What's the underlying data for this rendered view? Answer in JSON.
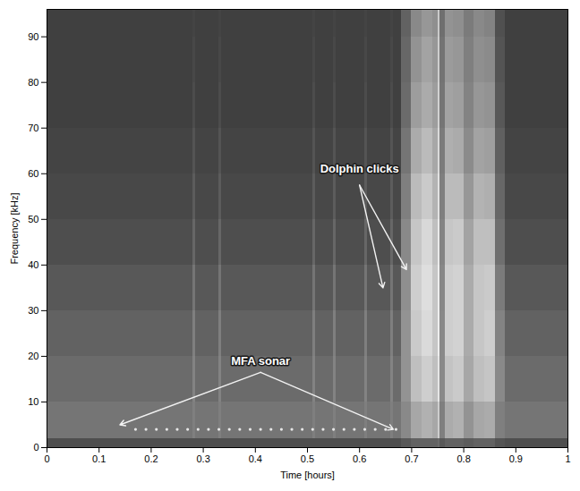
{
  "chart_data": {
    "type": "heatmap",
    "x_label": "Time [hours]",
    "y_label": "Frequency [kHz]",
    "xlim": [
      0,
      1
    ],
    "xticks": [
      0,
      0.1,
      0.2,
      0.3,
      0.4,
      0.5,
      0.6,
      0.7,
      0.8,
      0.9,
      1
    ],
    "ylim": [
      0,
      96
    ],
    "yticks": [
      0,
      10,
      20,
      30,
      40,
      50,
      60,
      70,
      80,
      90
    ],
    "time_edges": [
      0,
      0.28,
      0.285,
      0.33,
      0.335,
      0.51,
      0.515,
      0.55,
      0.555,
      0.61,
      0.615,
      0.66,
      0.665,
      0.68,
      0.7,
      0.72,
      0.74,
      0.75,
      0.755,
      0.765,
      0.78,
      0.8,
      0.82,
      0.84,
      0.86,
      0.88,
      1
    ],
    "frequency_edges": [
      0,
      2,
      10,
      20,
      30,
      40,
      50,
      60,
      70,
      80,
      90,
      96
    ],
    "zlim": [
      0,
      100
    ],
    "levels": [
      [
        15,
        35,
        30,
        25,
        20,
        15,
        12,
        10,
        8,
        8,
        8
      ],
      [
        15,
        40,
        42,
        40,
        35,
        28,
        22,
        18,
        14,
        12,
        10
      ],
      [
        15,
        35,
        30,
        25,
        20,
        15,
        12,
        10,
        8,
        8,
        8
      ],
      [
        15,
        40,
        42,
        40,
        35,
        28,
        22,
        18,
        14,
        12,
        10
      ],
      [
        15,
        35,
        30,
        25,
        20,
        15,
        12,
        10,
        8,
        8,
        8
      ],
      [
        15,
        40,
        42,
        40,
        35,
        28,
        22,
        18,
        14,
        12,
        10
      ],
      [
        15,
        35,
        30,
        25,
        20,
        15,
        12,
        10,
        8,
        8,
        8
      ],
      [
        15,
        40,
        42,
        40,
        35,
        28,
        22,
        18,
        14,
        12,
        10
      ],
      [
        15,
        35,
        30,
        25,
        20,
        15,
        12,
        10,
        8,
        8,
        8
      ],
      [
        15,
        40,
        42,
        40,
        35,
        28,
        22,
        18,
        14,
        12,
        10
      ],
      [
        15,
        35,
        30,
        25,
        20,
        15,
        12,
        10,
        8,
        8,
        8
      ],
      [
        15,
        40,
        42,
        40,
        35,
        28,
        22,
        18,
        14,
        12,
        10
      ],
      [
        15,
        35,
        30,
        25,
        20,
        15,
        12,
        10,
        8,
        8,
        8
      ],
      [
        20,
        45,
        50,
        50,
        48,
        45,
        40,
        35,
        30,
        28,
        25
      ],
      [
        25,
        60,
        72,
        78,
        80,
        76,
        70,
        62,
        55,
        50,
        45
      ],
      [
        25,
        65,
        80,
        86,
        88,
        85,
        78,
        70,
        62,
        58,
        52
      ],
      [
        25,
        60,
        72,
        76,
        76,
        72,
        66,
        60,
        55,
        52,
        48
      ],
      [
        30,
        80,
        92,
        96,
        96,
        94,
        90,
        86,
        82,
        80,
        78
      ],
      [
        20,
        40,
        45,
        45,
        44,
        42,
        40,
        38,
        35,
        34,
        32
      ],
      [
        25,
        62,
        74,
        80,
        80,
        76,
        70,
        64,
        58,
        54,
        50
      ],
      [
        25,
        65,
        78,
        82,
        82,
        78,
        70,
        62,
        56,
        52,
        48
      ],
      [
        22,
        50,
        60,
        62,
        62,
        58,
        52,
        46,
        42,
        40,
        38
      ],
      [
        25,
        60,
        72,
        76,
        76,
        72,
        66,
        58,
        52,
        48,
        45
      ],
      [
        25,
        62,
        75,
        80,
        78,
        72,
        64,
        56,
        50,
        46,
        42
      ],
      [
        18,
        40,
        45,
        42,
        38,
        32,
        28,
        24,
        20,
        18,
        16
      ],
      [
        15,
        35,
        30,
        25,
        20,
        15,
        12,
        10,
        8,
        8,
        8
      ]
    ],
    "sonar_pings": {
      "x": [
        0.17,
        0.19,
        0.21,
        0.23,
        0.25,
        0.27,
        0.29,
        0.31,
        0.33,
        0.35,
        0.37,
        0.39,
        0.41,
        0.43,
        0.45,
        0.47,
        0.49,
        0.51,
        0.53,
        0.55,
        0.57,
        0.59,
        0.61,
        0.63,
        0.65,
        0.67
      ],
      "frequency": 4
    },
    "annotations": [
      {
        "text": "Dolphin clicks",
        "x": 0.6,
        "y": 61,
        "arrows": [
          {
            "from": [
              0.6,
              57.5
            ],
            "to": [
              0.69,
              39
            ]
          },
          {
            "from": [
              0.6,
              57.5
            ],
            "to": [
              0.645,
              35
            ]
          }
        ]
      },
      {
        "text": "MFA sonar",
        "x": 0.41,
        "y": 19,
        "arrows": [
          {
            "from": [
              0.41,
              16.5
            ],
            "to": [
              0.14,
              5
            ]
          },
          {
            "from": [
              0.41,
              16.5
            ],
            "to": [
              0.665,
              4
            ]
          }
        ]
      }
    ]
  }
}
